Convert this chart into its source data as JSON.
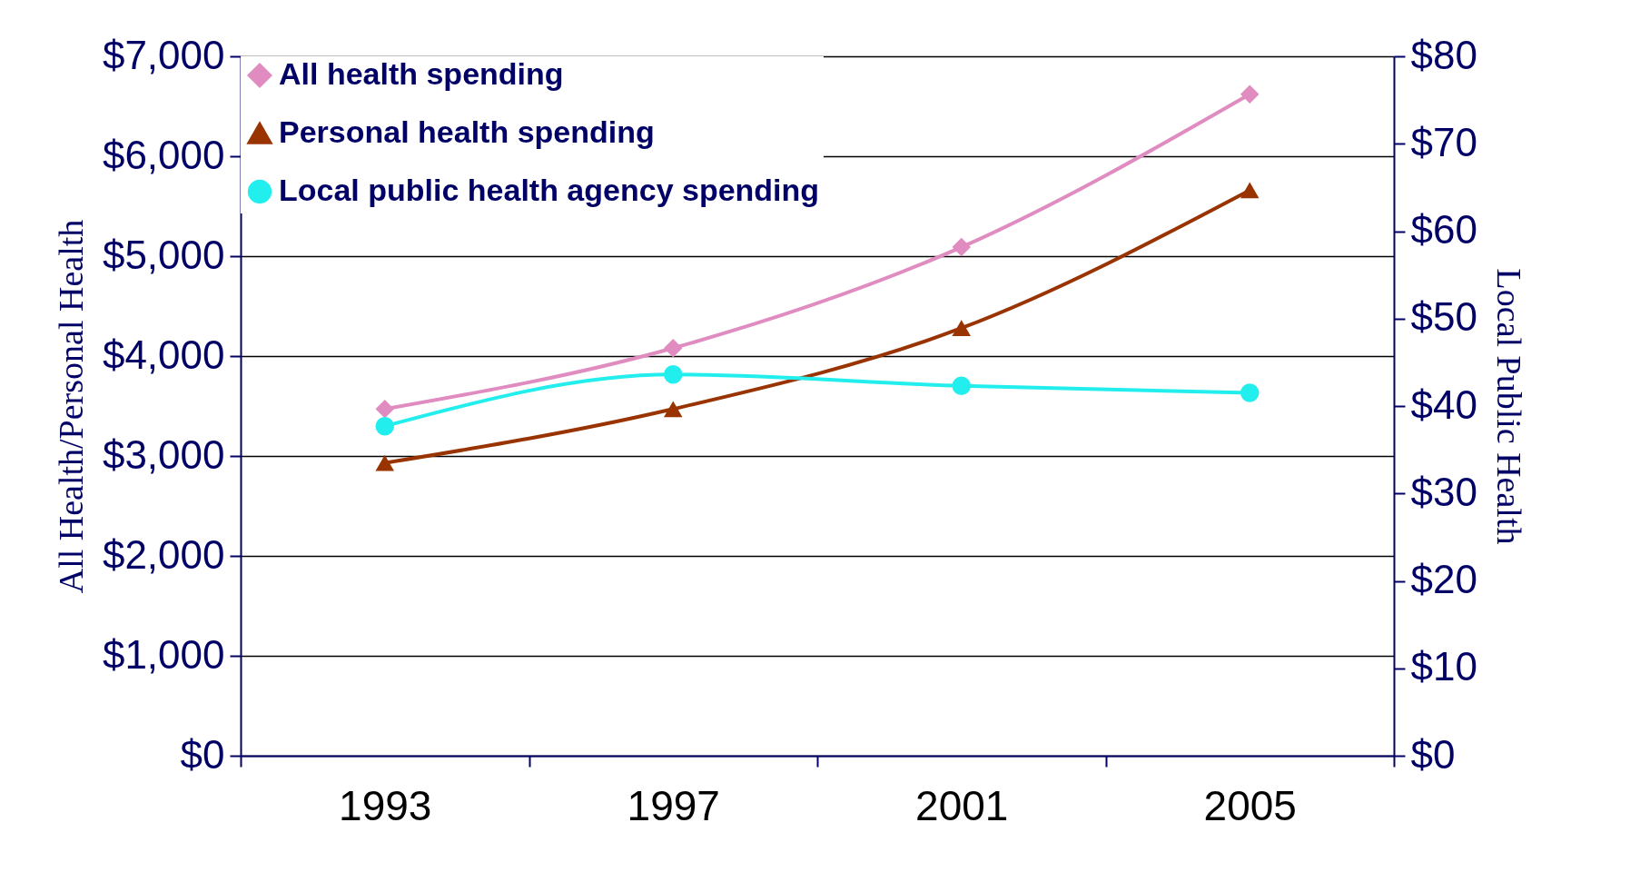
{
  "chart_data": {
    "type": "line",
    "ylabel": "All Health/Personal Health",
    "y2label": "Local Public Health",
    "categories": [
      "1993",
      "1997",
      "2001",
      "2005"
    ],
    "series": [
      {
        "name": "All health spending",
        "color": "#e08cc0",
        "marker": "diamond",
        "values": [
          3470,
          4080,
          5090,
          6620
        ]
      },
      {
        "name": "Personal health spending",
        "color": "#993300",
        "marker": "triangle",
        "values": [
          2930,
          3470,
          4280,
          5660
        ]
      },
      {
        "name": "Local public health agency spending",
        "color": "#22eeee",
        "marker": "circle",
        "axis": "y2",
        "values": [
          37.7,
          43.6,
          42.3,
          41.5
        ]
      }
    ],
    "ylim": [
      0,
      7000
    ],
    "yticks": [
      {
        "value": 0,
        "label": "$0"
      },
      {
        "value": 1000,
        "label": "$1,000"
      },
      {
        "value": 2000,
        "label": "$2,000"
      },
      {
        "value": 3000,
        "label": "$3,000"
      },
      {
        "value": 4000,
        "label": "$4,000"
      },
      {
        "value": 5000,
        "label": "$5,000"
      },
      {
        "value": 6000,
        "label": "$6,000"
      },
      {
        "value": 7000,
        "label": "$7,000"
      }
    ],
    "y2lim": [
      0,
      80
    ],
    "y2ticks": [
      {
        "value": 0,
        "label": "$0"
      },
      {
        "value": 10,
        "label": "$10"
      },
      {
        "value": 20,
        "label": "$20"
      },
      {
        "value": 30,
        "label": "$30"
      },
      {
        "value": 40,
        "label": "$40"
      },
      {
        "value": 50,
        "label": "$50"
      },
      {
        "value": 60,
        "label": "$60"
      },
      {
        "value": 70,
        "label": "$70"
      },
      {
        "value": 80,
        "label": "$80"
      }
    ],
    "grid": "y",
    "legend": "top left",
    "line_style": "solid"
  }
}
